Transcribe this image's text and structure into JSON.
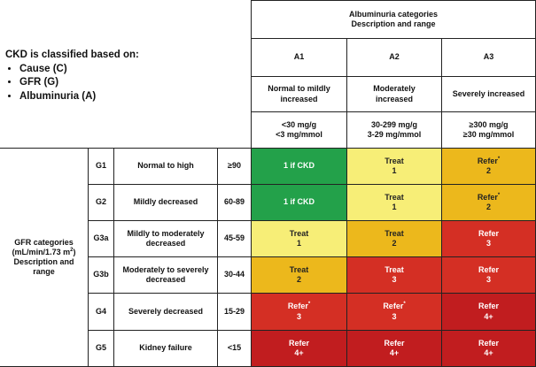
{
  "intro": {
    "heading": "CKD is classified based on:",
    "items": [
      "Cause (C)",
      "GFR (G)",
      "Albuminuria (A)"
    ]
  },
  "albuminuria_header": {
    "title": "Albuminuria categories",
    "subtitle": "Description and range"
  },
  "columns": [
    {
      "code": "A1",
      "desc": "Normal to mildly increased",
      "range1": "<30 mg/g",
      "range2": "<3 mg/mmol"
    },
    {
      "code": "A2",
      "desc": "Moderately increased",
      "range1": "30-299 mg/g",
      "range2": "3-29 mg/mmol"
    },
    {
      "code": "A3",
      "desc": "Severely increased",
      "range1": "≥300 mg/g",
      "range2": "≥30 mg/mmol"
    }
  ],
  "gfr_header": {
    "line1": "GFR categories",
    "line2_pre": "(mL/min/1.73 m",
    "line2_sup": "2",
    "line2_post": ")",
    "line3": "Description and",
    "line4": "range"
  },
  "rows": [
    {
      "code": "G1",
      "desc": "Normal to high",
      "range": "≥90",
      "cells": [
        {
          "line1": "1 if CKD",
          "line2": "",
          "star": "",
          "color": "green"
        },
        {
          "line1": "Treat",
          "line2": "1",
          "star": "",
          "color": "yellow"
        },
        {
          "line1": "Refer",
          "line2": "2",
          "star": "*",
          "color": "orange"
        }
      ]
    },
    {
      "code": "G2",
      "desc": "Mildly decreased",
      "range": "60-89",
      "cells": [
        {
          "line1": "1 if CKD",
          "line2": "",
          "star": "",
          "color": "green"
        },
        {
          "line1": "Treat",
          "line2": "1",
          "star": "",
          "color": "yellow"
        },
        {
          "line1": "Refer",
          "line2": "2",
          "star": "*",
          "color": "orange"
        }
      ]
    },
    {
      "code": "G3a",
      "desc": "Mildly to moderately decreased",
      "range": "45-59",
      "cells": [
        {
          "line1": "Treat",
          "line2": "1",
          "star": "",
          "color": "yellow"
        },
        {
          "line1": "Treat",
          "line2": "2",
          "star": "",
          "color": "orange"
        },
        {
          "line1": "Refer",
          "line2": "3",
          "star": "",
          "color": "red"
        }
      ]
    },
    {
      "code": "G3b",
      "desc": "Moderately to severely decreased",
      "range": "30-44",
      "cells": [
        {
          "line1": "Treat",
          "line2": "2",
          "star": "",
          "color": "orange"
        },
        {
          "line1": "Treat",
          "line2": "3",
          "star": "",
          "color": "red"
        },
        {
          "line1": "Refer",
          "line2": "3",
          "star": "",
          "color": "red"
        }
      ]
    },
    {
      "code": "G4",
      "desc": "Severely decreased",
      "range": "15-29",
      "cells": [
        {
          "line1": "Refer",
          "line2": "3",
          "star": "*",
          "color": "red"
        },
        {
          "line1": "Refer",
          "line2": "3",
          "star": "*",
          "color": "red"
        },
        {
          "line1": "Refer",
          "line2": "4+",
          "star": "",
          "color": "darkred"
        }
      ]
    },
    {
      "code": "G5",
      "desc": "Kidney failure",
      "range": "<15",
      "cells": [
        {
          "line1": "Refer",
          "line2": "4+",
          "star": "",
          "color": "darkred"
        },
        {
          "line1": "Refer",
          "line2": "4+",
          "star": "",
          "color": "darkred"
        },
        {
          "line1": "Refer",
          "line2": "4+",
          "star": "",
          "color": "darkred"
        }
      ]
    }
  ],
  "colors": {
    "green": "#23a14a",
    "yellow": "#f7ee77",
    "orange": "#ecb81c",
    "red": "#d42f24",
    "darkred": "#c11d1f"
  }
}
